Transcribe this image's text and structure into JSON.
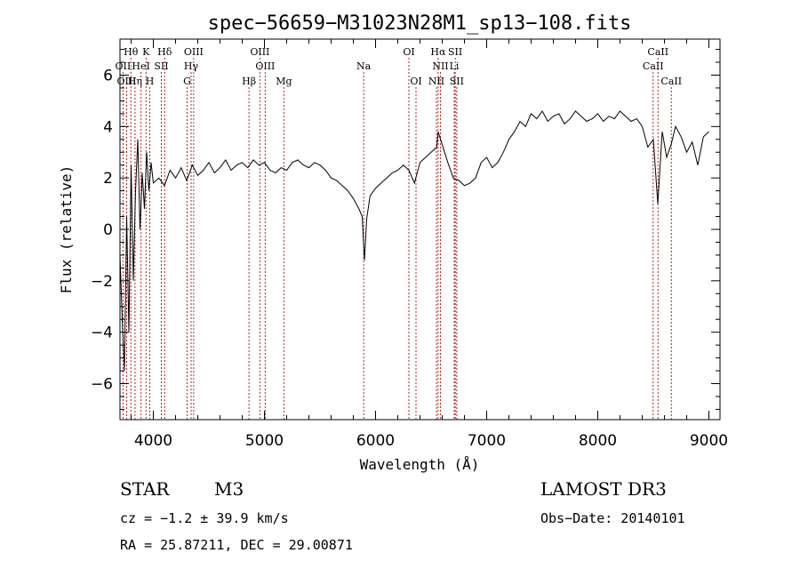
{
  "chart_data": {
    "type": "line",
    "title": "spec−56659−M31023N28M1_sp13−108.fits",
    "xlabel": "Wavelength (Å)",
    "ylabel": "Flux (relative)",
    "xlim": [
      3700,
      9100
    ],
    "ylim": [
      -7.4,
      7.4
    ],
    "x_ticks": [
      4000,
      5000,
      6000,
      7000,
      8000,
      9000
    ],
    "y_ticks": [
      -6,
      -4,
      -2,
      0,
      2,
      4,
      6
    ],
    "x_tick_labels": [
      "4000",
      "5000",
      "6000",
      "7000",
      "8000",
      "9000"
    ],
    "y_tick_labels": [
      "−6",
      "−4",
      "−2",
      "0",
      "2",
      "4",
      "6"
    ],
    "grid": false,
    "series": [
      {
        "name": "",
        "color": "#000000",
        "x": [
          3700,
          3720,
          3740,
          3760,
          3780,
          3800,
          3820,
          3840,
          3860,
          3880,
          3900,
          3920,
          3940,
          3960,
          3980,
          4000,
          4050,
          4100,
          4150,
          4200,
          4250,
          4300,
          4350,
          4400,
          4450,
          4500,
          4550,
          4600,
          4650,
          4700,
          4750,
          4800,
          4850,
          4900,
          4950,
          5000,
          5050,
          5100,
          5150,
          5200,
          5250,
          5300,
          5350,
          5400,
          5450,
          5500,
          5550,
          5600,
          5650,
          5700,
          5750,
          5800,
          5850,
          5880,
          5900,
          5920,
          5950,
          6000,
          6050,
          6100,
          6150,
          6200,
          6250,
          6300,
          6350,
          6400,
          6450,
          6500,
          6550,
          6563,
          6600,
          6650,
          6700,
          6750,
          6800,
          6850,
          6900,
          6950,
          7000,
          7050,
          7100,
          7150,
          7200,
          7250,
          7300,
          7350,
          7400,
          7450,
          7500,
          7550,
          7600,
          7650,
          7700,
          7750,
          7800,
          7850,
          7900,
          7950,
          8000,
          8050,
          8100,
          8150,
          8200,
          8250,
          8300,
          8350,
          8400,
          8450,
          8500,
          8540,
          8580,
          8620,
          8660,
          8700,
          8750,
          8800,
          8850,
          8900,
          8950,
          9000
        ],
        "values": [
          -1.0,
          -3.5,
          -5.5,
          0.5,
          -4.0,
          2.5,
          -2.0,
          1.5,
          3.5,
          0.0,
          2.2,
          0.8,
          3.0,
          1.5,
          2.6,
          1.8,
          2.0,
          1.7,
          2.3,
          2.0,
          2.4,
          1.9,
          2.5,
          2.1,
          2.3,
          2.6,
          2.2,
          2.4,
          2.7,
          2.3,
          2.5,
          2.6,
          2.4,
          2.7,
          2.5,
          2.6,
          2.3,
          2.2,
          2.4,
          2.3,
          2.6,
          2.7,
          2.5,
          2.4,
          2.6,
          2.5,
          2.3,
          2.0,
          1.9,
          1.7,
          1.5,
          1.2,
          0.8,
          0.5,
          -1.2,
          0.4,
          1.3,
          1.6,
          1.8,
          2.0,
          2.2,
          2.3,
          2.5,
          2.3,
          1.8,
          2.6,
          2.8,
          3.0,
          3.2,
          3.8,
          3.3,
          2.6,
          2.0,
          1.9,
          1.7,
          1.8,
          2.0,
          2.6,
          2.8,
          2.4,
          2.6,
          3.0,
          3.5,
          3.8,
          4.2,
          4.0,
          4.5,
          4.3,
          4.6,
          4.2,
          4.4,
          4.5,
          4.1,
          4.3,
          4.6,
          4.4,
          4.2,
          4.3,
          4.5,
          4.2,
          4.4,
          4.3,
          4.6,
          4.4,
          4.2,
          4.3,
          4.0,
          3.2,
          3.5,
          1.0,
          3.8,
          2.8,
          3.3,
          4.0,
          3.6,
          3.0,
          3.4,
          2.5,
          3.6,
          3.8
        ]
      }
    ],
    "lines_top": [
      {
        "label": "Hθ",
        "x": 3798
      },
      {
        "label": "K",
        "x": 3934
      },
      {
        "label": "Hδ",
        "x": 4102
      },
      {
        "label": "OIII",
        "x": 4363
      },
      {
        "label": "OIII",
        "x": 4959
      },
      {
        "label": "OI",
        "x": 6300
      },
      {
        "label": "Hα",
        "x": 6563
      },
      {
        "label": "SII",
        "x": 6717
      },
      {
        "label": "CaII",
        "x": 8542
      }
    ],
    "lines_mid": [
      {
        "label": "OII",
        "x": 3727
      },
      {
        "label": "HeI",
        "x": 3889
      },
      {
        "label": "SII",
        "x": 4072
      },
      {
        "label": "Hγ",
        "x": 4340
      },
      {
        "label": "OIII",
        "x": 5007
      },
      {
        "label": "Na",
        "x": 5893
      },
      {
        "label": "NII",
        "x": 6584
      },
      {
        "label": "Li",
        "x": 6708
      },
      {
        "label": "CaII",
        "x": 8498
      }
    ],
    "lines_low": [
      {
        "label": "OIII",
        "x": 3760
      },
      {
        "label": "Hη",
        "x": 3835
      },
      {
        "label": "H",
        "x": 3968
      },
      {
        "label": "G",
        "x": 4304
      },
      {
        "label": "Hβ",
        "x": 4861
      },
      {
        "label": "Mg",
        "x": 5175
      },
      {
        "label": "OI",
        "x": 6364
      },
      {
        "label": "NII",
        "x": 6548
      },
      {
        "label": "SII",
        "x": 6731
      },
      {
        "label": "CaII",
        "x": 8662
      }
    ]
  },
  "info": {
    "class": "STAR",
    "subclass": "M3",
    "survey": "LAMOST DR3",
    "cz": "cz = −1.2 ± 39.9 km/s",
    "obs_date": "Obs−Date: 20140101",
    "coords": "RA =  25.87211, DEC =  29.00871"
  },
  "colors": {
    "spectrum": "#000000",
    "line_markers": "#b22222",
    "axes": "#000000"
  }
}
